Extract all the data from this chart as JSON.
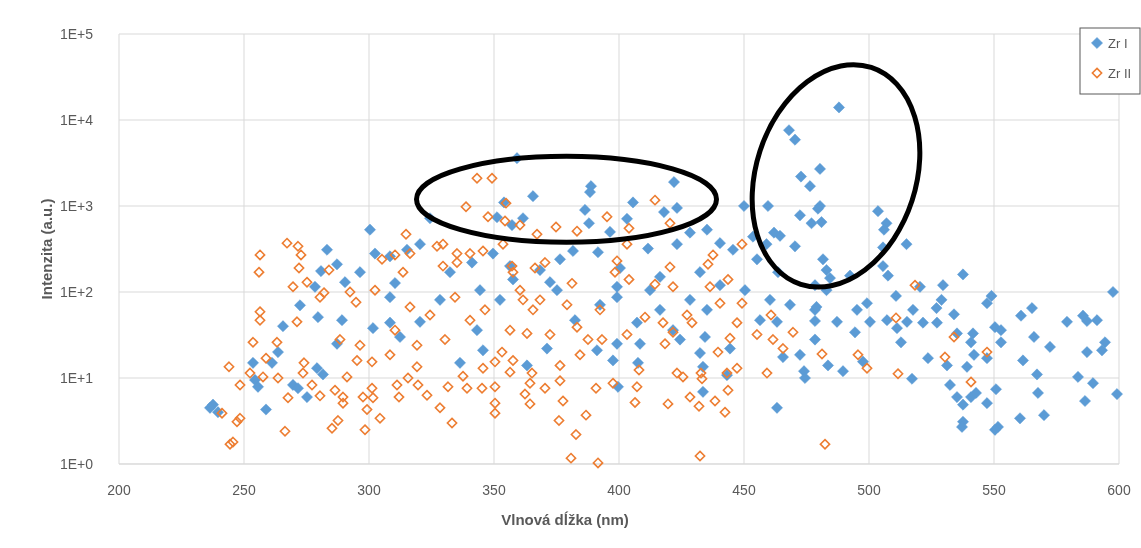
{
  "chart_data": {
    "type": "scatter",
    "xlabel": "Vlnová dĺžka (nm)",
    "ylabel": "Intenzita (a.u.)",
    "xlim": [
      200,
      600
    ],
    "xticks": [
      200,
      250,
      300,
      350,
      400,
      450,
      500,
      550,
      600
    ],
    "ylim": [
      1,
      100000
    ],
    "yticks": [
      {
        "value": 1,
        "label": "1E+0"
      },
      {
        "value": 10,
        "label": "1E+1"
      },
      {
        "value": 100,
        "label": "1E+2"
      },
      {
        "value": 1000,
        "label": "1E+3"
      },
      {
        "value": 10000,
        "label": "1E+4"
      },
      {
        "value": 100000,
        "label": "1E+5"
      }
    ],
    "log": "y",
    "grid": true,
    "legend": "top right",
    "marker": "diamond",
    "series": [
      {
        "name": "Zr I",
        "color": "#5b9bd5",
        "x": [
          488,
          468,
          470.4,
          480.4,
          472.8,
          476.4,
          480.4,
          479.6,
          481,
          472.4,
          459.6,
          450,
          477,
          464.4,
          462,
          459,
          470.4,
          359.2,
          422,
          388.8,
          388.4,
          365.6,
          354,
          405.6,
          386.4,
          403.2,
          361.6,
          503.6,
          507,
          506,
          505.6,
          515,
          505.6,
          507.6,
          492.4,
          537.6,
          529.6,
          520.4,
          597.6,
          549,
          510.8,
          481.6,
          483,
          484.4,
          478.4,
          483,
          423.2,
          418,
          388,
          396.4,
          435.2,
          428.4,
          453.6,
          381.6,
          376.4,
          391.6,
          411.6,
          423.2,
          440.4,
          445.6,
          455.2,
          463.6,
          432.4,
          416.4,
          399.2,
          372.4,
          357.6,
          300.4,
          302.4,
          283.2,
          287.2,
          280.8,
          296.4,
          320.4,
          324.4,
          351.2,
          357.2,
          315.2,
          308.4,
          278.4,
          349.6,
          341.2,
          356.4,
          237.6,
          236.4,
          239.6,
          258.8,
          254.4,
          255.6,
          253.6,
          269.6,
          271.6,
          275.2,
          265.6,
          272.4,
          279.6,
          289.2,
          263.6,
          261.2,
          279.2,
          281.6,
          287.2,
          301.6,
          308.4,
          312.4,
          308.4,
          320.4,
          336.4,
          345.6,
          343.2,
          352.4,
          363.2,
          397.6,
          399.6,
          407.6,
          433.6,
          433.6,
          443.2,
          463.2,
          474,
          474.4,
          478.4,
          465.6,
          472.4,
          432.4,
          444.4,
          424.4,
          408.4,
          399.2,
          391.2,
          371.2,
          434.4,
          435.2,
          456.4,
          463.2,
          468.4,
          478.4,
          407.2,
          399.2,
          375.2,
          421.6,
          479,
          478.4,
          487.2,
          494.4,
          483.6,
          489.6,
          497.6,
          495.2,
          499.2,
          500.4,
          507.2,
          511.2,
          515.2,
          512.8,
          517.2,
          517.6,
          521.6,
          527,
          529,
          534,
          527.2,
          523.6,
          531.2,
          539.2,
          535.2,
          541.6,
          540.8,
          542,
          547.2,
          532.4,
          535.2,
          537.6,
          540.8,
          542.8,
          537.6,
          537.2,
          547.2,
          551.6,
          550.4,
          550.8,
          560.4,
          570,
          567.6,
          567.2,
          561.6,
          566,
          572.4,
          552.8,
          547.2,
          550.4,
          552.8,
          560.8,
          565.2,
          579.2,
          585.6,
          587.2,
          591.2,
          587.2,
          593.2,
          594.4,
          583.6,
          589.6,
          586.4,
          599.2,
          368.4,
          400.4,
          412.4,
          428.4,
          440.4,
          450.4,
          460.4,
          392.4,
          382.4,
          416.4,
          290.4,
          310.4,
          332.4,
          344.4,
          328.4
        ],
        "values": [
          14000,
          7600,
          5900,
          2700,
          2200,
          1700,
          1000,
          930,
          650,
          780,
          1000,
          1000,
          630,
          450,
          490,
          360,
          340,
          3600,
          1900,
          1700,
          1450,
          1300,
          1100,
          1100,
          900,
          710,
          720,
          870,
          630,
          530,
          330,
          360,
          200,
          155,
          155,
          160,
          120,
          115,
          100,
          90,
          90,
          240,
          180,
          145,
          120,
          105,
          950,
          850,
          630,
          500,
          530,
          490,
          440,
          300,
          240,
          290,
          320,
          360,
          370,
          310,
          240,
          170,
          170,
          150,
          115,
          130,
          140,
          530,
          280,
          310,
          210,
          175,
          170,
          360,
          720,
          740,
          600,
          310,
          260,
          115,
          280,
          220,
          200,
          4.9,
          4.5,
          4,
          4.3,
          9.5,
          7.9,
          15,
          8.3,
          7.6,
          6,
          40,
          70,
          51,
          47,
          20,
          15,
          13,
          11,
          25,
          38,
          44,
          30,
          87,
          45,
          15,
          21,
          36,
          81,
          14,
          16,
          7.9,
          15,
          6.9,
          13.5,
          10.8,
          4.5,
          12,
          10,
          28,
          17.5,
          18.6,
          19.5,
          22,
          28,
          25,
          25,
          21,
          22,
          30,
          62,
          47,
          45,
          71,
          62,
          44,
          87,
          105,
          36,
          67,
          46,
          45,
          34,
          14,
          12,
          15.5,
          62,
          74,
          45,
          47,
          38,
          45,
          26,
          9.8,
          62,
          44,
          65,
          81,
          55,
          44,
          17,
          14,
          13.5,
          33,
          33,
          26,
          18.6,
          17,
          8.3,
          6,
          4.9,
          6,
          6.7,
          3.1,
          2.7,
          5.1,
          2.7,
          2.5,
          7.4,
          3.4,
          3.7,
          6.7,
          11,
          16,
          30,
          23,
          26,
          74,
          39,
          36,
          53,
          65,
          45,
          53,
          46,
          47,
          20,
          21,
          26,
          10.3,
          8.7,
          5.4,
          6.5,
          180,
          190,
          105,
          81,
          120,
          105,
          81,
          71,
          47,
          62,
          130,
          127,
          170,
          105,
          81
        ]
      },
      {
        "name": "Zr II",
        "color": "#ed7d31",
        "x": [
          343.2,
          349.2,
          338.8,
          347.6,
          354.4,
          314.8,
          329.6,
          267.2,
          271.6,
          272.8,
          256.4,
          256,
          272,
          284,
          305.2,
          310.4,
          316.4,
          327.2,
          335.2,
          340.4,
          345.6,
          353.6,
          275.2,
          269.6,
          282,
          292.4,
          313.6,
          329.6,
          335.2,
          357.2,
          354.8,
          360.4,
          374.8,
          367.2,
          383.2,
          395.2,
          404,
          414.4,
          420.4,
          403.2,
          399.2,
          398.4,
          404,
          420.4,
          414.4,
          421.6,
          435.6,
          437.6,
          449.2,
          443.6,
          366.4,
          370.4,
          381.2,
          357.6,
          436.4,
          244,
          248.4,
          248.4,
          247.2,
          244.4,
          245.6,
          241.2,
          256.4,
          256.4,
          253.6,
          252.4,
          257.6,
          266.4,
          267.6,
          263.6,
          263.2,
          271.2,
          273.6,
          277.2,
          280.4,
          285.2,
          287.6,
          286.4,
          289.6,
          289.6,
          291.2,
          295.2,
          298.4,
          299.2,
          301.2,
          301.6,
          304.4,
          297.6,
          301.2,
          308.4,
          311.2,
          312,
          315.6,
          319.2,
          319.6,
          323.2,
          328.4,
          333.2,
          331.6,
          337.6,
          339.2,
          345.6,
          345.2,
          350.4,
          350.4,
          350.4,
          350.4,
          356.4,
          357.6,
          258.8,
          274,
          482.4,
          432.4,
          391.6,
          380.8,
          382.8,
          376,
          386.8,
          377.6,
          364.4,
          362.4,
          364.4,
          370.4,
          376.4,
          365.2,
          390.8,
          397.6,
          407.2,
          406.4,
          408,
          419.6,
          428.4,
          432,
          438.4,
          442.4,
          443.6,
          423.2,
          425.6,
          432.8,
          433.2,
          443.2,
          447.2,
          459.2,
          481.2,
          418.4,
          393.2,
          387.6,
          384.4,
          376.4,
          353.2,
          439.6,
          444.4,
          447.2,
          455.2,
          461.6,
          465.6,
          469.6,
          460.8,
          449.2,
          440.4,
          427.2,
          429.2,
          421.6,
          417.6,
          410.4,
          403.2,
          392.4,
          383.2,
          379.2,
          365.6,
          361.6,
          356.4,
          363.2,
          372.4,
          510.8,
          495.6,
          499.2,
          511.6,
          530.4,
          534,
          547.2,
          540.8,
          518.4,
          280.4,
          294.8,
          302.4,
          316.4,
          324.4,
          334.4,
          340.4,
          346.4,
          310.4,
          288.4,
          296.4,
          319.2,
          330.4,
          360.4,
          368.4
        ],
        "values": [
          2100,
          2100,
          980,
          750,
          670,
          470,
          360,
          370,
          340,
          270,
          270,
          170,
          190,
          180,
          240,
          270,
          280,
          340,
          280,
          280,
          300,
          360,
          130,
          115,
          98,
          100,
          170,
          200,
          220,
          200,
          1080,
          600,
          570,
          470,
          510,
          750,
          550,
          1170,
          630,
          360,
          230,
          170,
          140,
          195,
          123,
          115,
          210,
          270,
          360,
          140,
          190,
          220,
          126,
          170,
          115,
          13.5,
          8.3,
          3.4,
          3.1,
          1.7,
          1.8,
          3.9,
          59,
          47,
          26,
          11.4,
          10.3,
          2.4,
          5.9,
          10,
          26,
          45,
          11.4,
          8.3,
          6.2,
          2.6,
          3.2,
          7.2,
          6,
          5.1,
          10.3,
          16,
          2.5,
          4.3,
          7.6,
          5.9,
          3.4,
          6,
          15.4,
          18.6,
          8.3,
          6,
          10,
          13.5,
          8.3,
          6.3,
          4.5,
          3,
          7.9,
          10.5,
          7.6,
          13,
          7.6,
          5.1,
          3.9,
          7.9,
          15.4,
          11.7,
          16,
          17,
          15,
          1.7,
          1.24,
          1.03,
          1.17,
          2.2,
          3.2,
          3.7,
          5.4,
          5,
          6.5,
          8.7,
          7.6,
          9.3,
          11.4,
          7.6,
          8.7,
          7.9,
          5.2,
          12.4,
          5,
          6,
          4.7,
          5.4,
          4,
          7.2,
          11.4,
          10.3,
          11.4,
          9.8,
          11.4,
          13,
          11.4,
          19,
          25,
          28,
          28,
          18.6,
          14,
          20,
          20,
          29,
          44,
          32,
          28,
          22,
          34,
          54,
          74,
          74,
          54,
          44,
          34,
          44,
          51,
          32,
          62,
          39,
          71,
          62,
          81,
          36,
          33,
          32,
          50,
          18.6,
          13,
          11.2,
          17.5,
          30,
          20,
          9,
          120,
          87,
          76,
          105,
          67,
          54,
          87,
          47,
          62,
          36,
          28,
          24,
          24,
          28,
          105,
          81
        ]
      }
    ]
  }
}
